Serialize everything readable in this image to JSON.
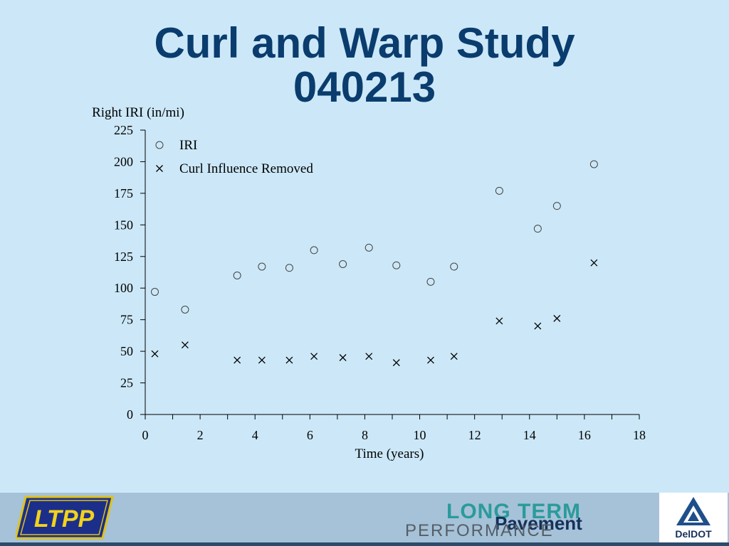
{
  "slide": {
    "title_line1": "Curl and Warp Study",
    "title_line2": "040213"
  },
  "chart_data": {
    "type": "scatter",
    "ylabel": "Right IRI (in/mi)",
    "xlabel": "Time (years)",
    "xlim": [
      0,
      18
    ],
    "ylim": [
      0,
      225
    ],
    "xticks": [
      0,
      2,
      4,
      6,
      8,
      10,
      12,
      14,
      16,
      18
    ],
    "yticks": [
      0,
      25,
      50,
      75,
      100,
      125,
      150,
      175,
      200,
      225
    ],
    "grid": false,
    "legend_position": "top-left",
    "series": [
      {
        "name": "IRI",
        "marker": "circle",
        "x": [
          0.35,
          1.45,
          3.35,
          4.25,
          5.25,
          6.15,
          7.2,
          8.15,
          9.15,
          10.4,
          11.25,
          12.9,
          14.3,
          15.0,
          16.35
        ],
        "y": [
          97,
          83,
          110,
          117,
          116,
          130,
          119,
          132,
          118,
          105,
          117,
          177,
          147,
          165,
          198
        ]
      },
      {
        "name": "Curl Influence Removed",
        "marker": "x",
        "x": [
          0.35,
          1.45,
          3.35,
          4.25,
          5.25,
          6.15,
          7.2,
          8.15,
          9.15,
          10.4,
          11.25,
          12.9,
          14.3,
          15.0,
          16.35
        ],
        "y": [
          48,
          55,
          43,
          43,
          43,
          46,
          45,
          46,
          41,
          43,
          46,
          74,
          70,
          76,
          120
        ]
      }
    ]
  },
  "footer": {
    "ltpp_logo_text": "LTPP",
    "long_term": "LONG TERM",
    "pavement": "Pavement",
    "performance": "PERFORMANCE",
    "deldot": "DelDOT"
  },
  "colors": {
    "background": "#cce8f8",
    "title": "#0a3c6e",
    "footer": "#a6c2d8"
  }
}
